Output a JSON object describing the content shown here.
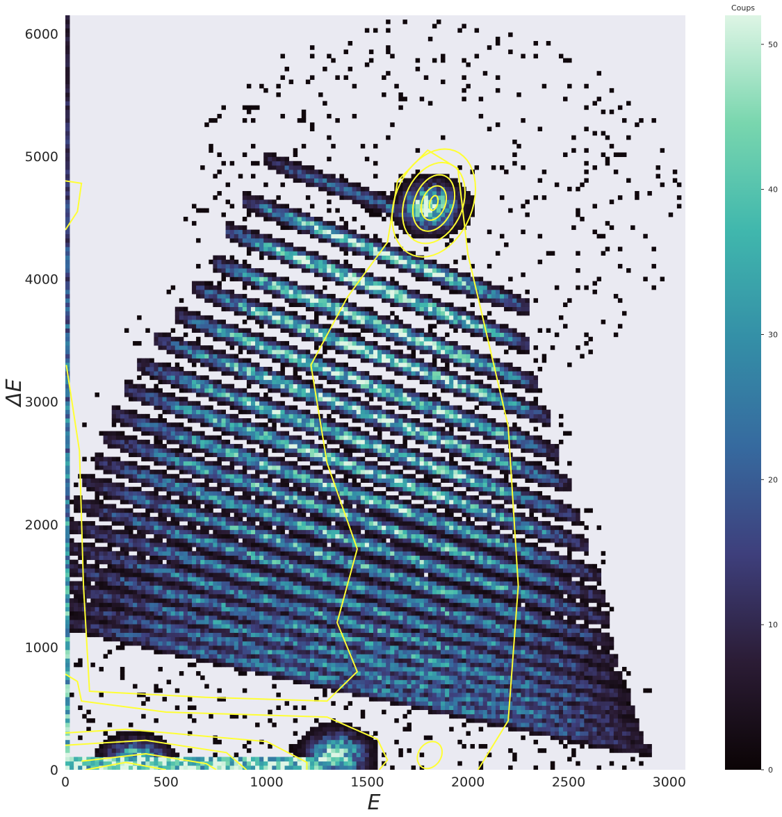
{
  "chart_data": {
    "type": "heatmap",
    "xlabel": "E",
    "ylabel": "ΔE",
    "xlim": [
      0,
      3080
    ],
    "ylim": [
      0,
      6150
    ],
    "xticks": [
      0,
      500,
      1000,
      1500,
      2000,
      2500,
      3000
    ],
    "yticks": [
      0,
      1000,
      2000,
      3000,
      4000,
      5000,
      6000
    ],
    "x_bin_width": 21,
    "y_bin_width": 35,
    "colorbar": {
      "title": "Coups",
      "range": [
        0,
        52
      ],
      "ticks": [
        0,
        10,
        20,
        30,
        40,
        50
      ],
      "colormap": "mako",
      "stops": [
        "#0b0405",
        "#2b1c35",
        "#3e3f7c",
        "#366a9f",
        "#348fa7",
        "#40b7ad",
        "#79d6ae",
        "#def5e5"
      ]
    },
    "background_color": "#eaeaf2",
    "contour_color": "#ffff33",
    "bands": {
      "description_units": "each band: line in data units dE = intercept - slope*E, for E in [e_start, e_end], with peak counts",
      "list": [
        {
          "intercept": 5600,
          "slope": 0.62,
          "e_start": 1050,
          "e_end": 1850,
          "peak": 22
        },
        {
          "intercept": 5200,
          "slope": 0.62,
          "e_start": 950,
          "e_end": 2250,
          "peak": 46
        },
        {
          "intercept": 4900,
          "slope": 0.62,
          "e_start": 850,
          "e_end": 2250,
          "peak": 50
        },
        {
          "intercept": 4600,
          "slope": 0.62,
          "e_start": 800,
          "e_end": 2300,
          "peak": 50
        },
        {
          "intercept": 4320,
          "slope": 0.6,
          "e_start": 700,
          "e_end": 2350,
          "peak": 48
        },
        {
          "intercept": 4050,
          "slope": 0.6,
          "e_start": 600,
          "e_end": 2400,
          "peak": 46
        },
        {
          "intercept": 3780,
          "slope": 0.58,
          "e_start": 500,
          "e_end": 2450,
          "peak": 45
        },
        {
          "intercept": 3520,
          "slope": 0.57,
          "e_start": 420,
          "e_end": 2500,
          "peak": 44
        },
        {
          "intercept": 3280,
          "slope": 0.56,
          "e_start": 350,
          "e_end": 2550,
          "peak": 42
        },
        {
          "intercept": 3040,
          "slope": 0.55,
          "e_start": 300,
          "e_end": 2600,
          "peak": 40
        },
        {
          "intercept": 2820,
          "slope": 0.53,
          "e_start": 250,
          "e_end": 2620,
          "peak": 38
        },
        {
          "intercept": 2600,
          "slope": 0.51,
          "e_start": 200,
          "e_end": 2650,
          "peak": 36
        },
        {
          "intercept": 2400,
          "slope": 0.5,
          "e_start": 150,
          "e_end": 2680,
          "peak": 34
        },
        {
          "intercept": 2200,
          "slope": 0.48,
          "e_start": 100,
          "e_end": 2700,
          "peak": 32
        },
        {
          "intercept": 2010,
          "slope": 0.46,
          "e_start": 80,
          "e_end": 2720,
          "peak": 30
        },
        {
          "intercept": 1830,
          "slope": 0.44,
          "e_start": 60,
          "e_end": 2750,
          "peak": 30
        },
        {
          "intercept": 1660,
          "slope": 0.42,
          "e_start": 40,
          "e_end": 2780,
          "peak": 30
        },
        {
          "intercept": 1500,
          "slope": 0.4,
          "e_start": 30,
          "e_end": 2800,
          "peak": 28
        },
        {
          "intercept": 1350,
          "slope": 0.38,
          "e_start": 20,
          "e_end": 2820,
          "peak": 28
        },
        {
          "intercept": 1210,
          "slope": 0.36,
          "e_start": 20,
          "e_end": 2850,
          "peak": 26
        }
      ]
    },
    "peaks": [
      {
        "e": 1820,
        "de": 4600,
        "counts": 52
      },
      {
        "e": 350,
        "de": 50,
        "counts": 52
      },
      {
        "e": 1350,
        "de": 120,
        "counts": 48
      }
    ],
    "contours": [
      {
        "center": [
          1830,
          4620
        ],
        "radii": [
          [
            20,
            60
          ],
          [
            60,
            140
          ],
          [
            100,
            230
          ],
          [
            150,
            330
          ],
          [
            200,
            440
          ]
        ]
      },
      {
        "center": [
          1810,
          120
        ],
        "radii": [
          [
            60,
            110
          ]
        ]
      }
    ]
  }
}
